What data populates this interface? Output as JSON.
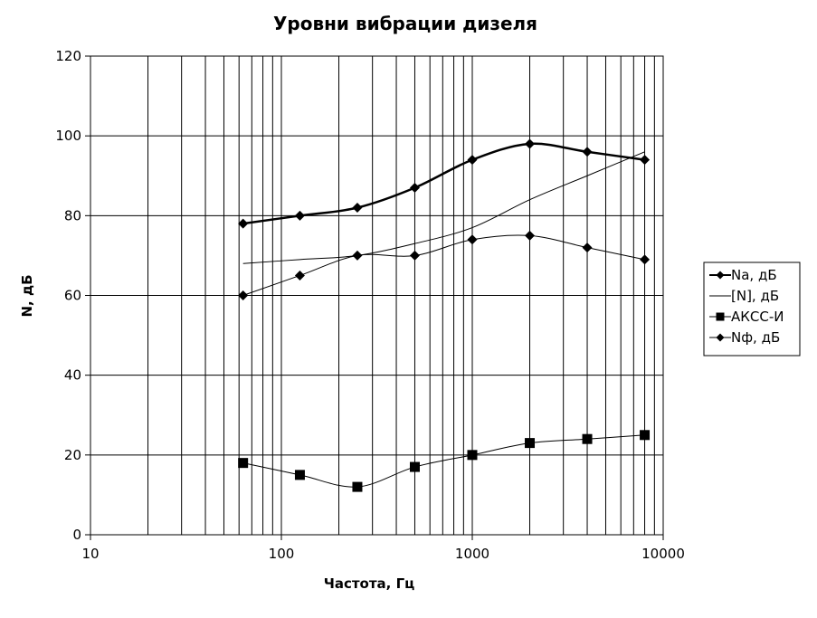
{
  "chart_data": {
    "type": "line",
    "title": "Уровни вибрации дизеля",
    "xlabel": "Частота, Гц",
    "ylabel": "N, дБ",
    "xscale": "log",
    "xlim": [
      10,
      10000
    ],
    "ylim": [
      0,
      120
    ],
    "x_ticks": [
      "10",
      "100",
      "1000",
      "10000"
    ],
    "y_ticks": [
      "0",
      "20",
      "40",
      "60",
      "80",
      "100",
      "120"
    ],
    "grid": true,
    "legend_position": "right",
    "x": [
      63,
      125,
      250,
      500,
      1000,
      2000,
      4000,
      8000
    ],
    "series": [
      {
        "name": "Na, дБ",
        "values": [
          78,
          80,
          82,
          87,
          94,
          98,
          96,
          94
        ],
        "marker": "diamond",
        "line": "thick"
      },
      {
        "name": "[N], дБ",
        "values": [
          68,
          69,
          70,
          73,
          77,
          84,
          90,
          96
        ],
        "marker": "none",
        "line": "thin"
      },
      {
        "name": "АКСС-И",
        "values": [
          18,
          15,
          12,
          17,
          20,
          23,
          24,
          25
        ],
        "marker": "square",
        "line": "thin"
      },
      {
        "name": "Nф, дБ",
        "values": [
          60,
          65,
          70,
          70,
          74,
          75,
          72,
          69
        ],
        "marker": "diamond",
        "line": "thin"
      }
    ]
  }
}
